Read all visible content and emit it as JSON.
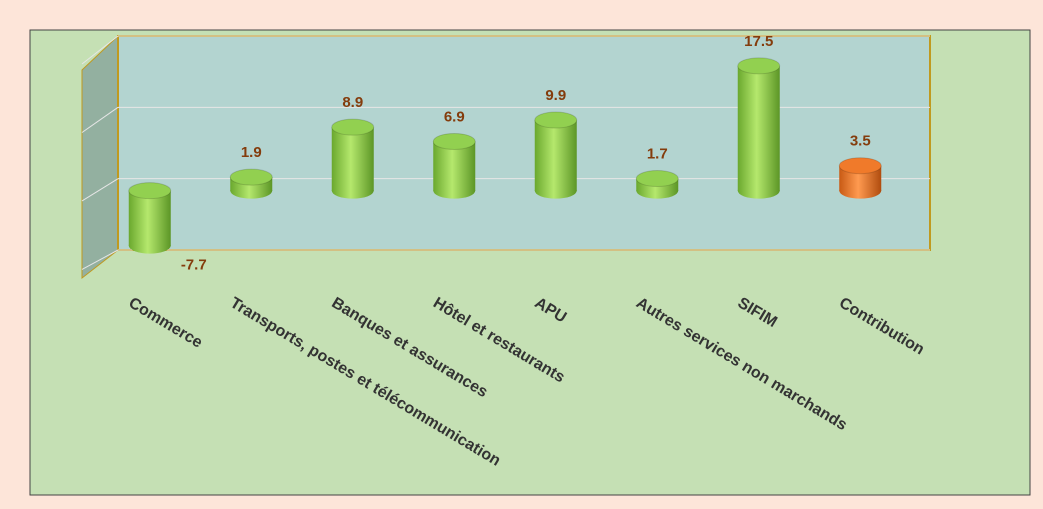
{
  "chart_data": {
    "type": "bar",
    "categories": [
      "Commerce",
      "Transports, postes et télécommunication",
      "Banques et assurances",
      "Hôtel et restaurants",
      "APU",
      "Autres services non marchands",
      "SIFIM",
      "Contribution"
    ],
    "values": [
      -7.7,
      1.9,
      8.9,
      6.9,
      9.9,
      1.7,
      17.5,
      3.5
    ],
    "colors": [
      "#92d050",
      "#92d050",
      "#92d050",
      "#92d050",
      "#92d050",
      "#92d050",
      "#92d050",
      "#f07a2a"
    ],
    "ylim": [
      -10,
      20
    ],
    "yticks": [
      -10,
      0,
      10,
      20
    ],
    "grid": true
  }
}
